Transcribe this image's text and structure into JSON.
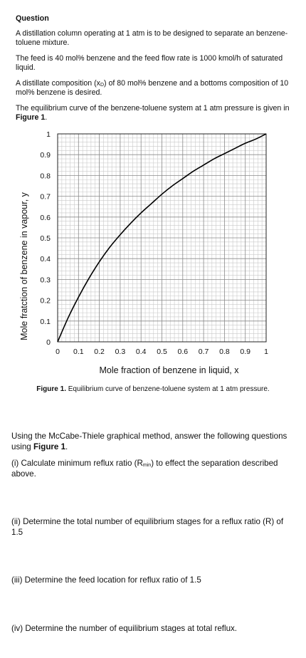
{
  "header": {
    "title": "Question",
    "p1": "A distillation column operating at 1 atm is to be designed to separate an benzene-toluene mixture.",
    "p2": "The feed is 40 mol% benzene and the feed flow rate is 1000 kmol/h of saturated liquid.",
    "p3_a": "A distillate composition (x",
    "p3_sub": "D",
    "p3_b": ") of 80 mol% benzene and a bottoms composition of 10 mol% benzene is desired.",
    "p4_a": "The equilibrium curve of the benzene-toluene system at 1 atm pressure is given in ",
    "p4_bold": "Figure 1",
    "p4_end": "."
  },
  "chart_data": {
    "type": "line",
    "title": "",
    "xlabel": "Mole fraction of benzene in liquid, x",
    "ylabel": "Mole fratction of benzene in vapour, y",
    "xlim": [
      0,
      1
    ],
    "ylim": [
      0,
      1
    ],
    "grid": true,
    "x_ticks": [
      "0",
      "0.1",
      "0.2",
      "0.3",
      "0.4",
      "0.5",
      "0.6",
      "0.7",
      "0.8",
      "0.9",
      "1"
    ],
    "y_ticks": [
      "0",
      "0.1",
      "0.2",
      "0.3",
      "0.4",
      "0.5",
      "0.6",
      "0.7",
      "0.8",
      "0.9",
      "1"
    ],
    "series": [
      {
        "x": [
          0,
          0.05,
          0.1,
          0.15,
          0.2,
          0.25,
          0.3,
          0.35,
          0.4,
          0.45,
          0.5,
          0.55,
          0.6,
          0.65,
          0.7,
          0.75,
          0.8,
          0.85,
          0.9,
          0.95,
          1
        ],
        "y": [
          0,
          0.115,
          0.215,
          0.305,
          0.385,
          0.455,
          0.515,
          0.57,
          0.62,
          0.665,
          0.71,
          0.75,
          0.785,
          0.82,
          0.85,
          0.88,
          0.905,
          0.93,
          0.955,
          0.975,
          1
        ]
      }
    ]
  },
  "caption": {
    "bold": "Figure 1.",
    "text": " Equilibrium curve of benzene-toluene system at 1 atm pressure."
  },
  "questions": {
    "intro_a": "Using the McCabe-Thiele graphical method, answer the following questions using ",
    "intro_bold": "Figure 1",
    "intro_end": ".",
    "q1_a": "(i) Calculate minimum reflux ratio (R",
    "q1_sub": "min",
    "q1_b": ") to effect the separation described above.",
    "q2": "(ii) Determine the total number of equilibrium stages for a reflux ratio (R) of 1.5",
    "q3": "(iii) Determine the feed location for reflux ratio of 1.5",
    "q4": "(iv) Determine the number of equilibrium stages at total reflux."
  }
}
